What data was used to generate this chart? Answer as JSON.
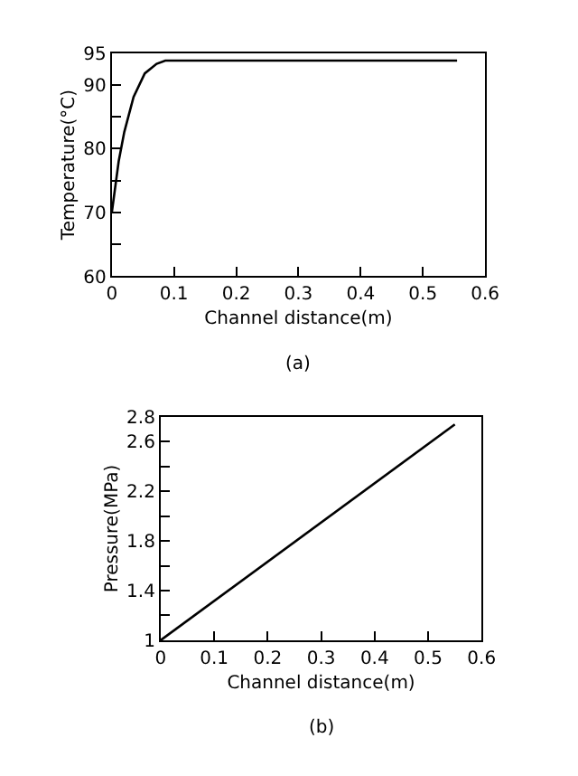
{
  "chart_data": [
    {
      "type": "line",
      "xlabel": "Channel distance(m)",
      "ylabel": "Temperature(°C)",
      "annotations": [
        "(a)"
      ],
      "x": [
        0,
        0.011,
        0.02,
        0.035,
        0.053,
        0.072,
        0.086,
        0.555
      ],
      "series": [
        {
          "color": "#000000",
          "values": [
            70,
            78,
            82.6,
            88.1,
            91.8,
            93.3,
            93.8,
            93.8
          ]
        }
      ],
      "xlim": [
        0,
        0.6
      ],
      "ylim": [
        60,
        95
      ],
      "xticks": [
        0,
        0.1,
        0.2,
        0.3,
        0.4,
        0.5,
        0.6
      ],
      "yticks": [
        60,
        {
          "value": 65,
          "label": null
        },
        70,
        {
          "value": 75,
          "label": null
        },
        80,
        {
          "value": 85,
          "label": null
        },
        90,
        95
      ],
      "grid": false,
      "marker": "none",
      "line_style": "solid"
    },
    {
      "type": "line",
      "xlabel": "Channel distance(m)",
      "ylabel": "Pressure(MPa)",
      "annotations": [
        "(b)"
      ],
      "x": [
        0,
        0.55
      ],
      "series": [
        {
          "color": "#000000",
          "values": [
            1,
            2.74
          ]
        }
      ],
      "xlim": [
        0,
        0.6
      ],
      "ylim": [
        1,
        2.8
      ],
      "xticks": [
        0,
        0.1,
        0.2,
        0.3,
        0.4,
        0.5,
        0.6
      ],
      "yticks": [
        1,
        {
          "value": 1.2,
          "label": null
        },
        1.4,
        {
          "value": 1.6,
          "label": null
        },
        1.8,
        {
          "value": 2.0,
          "label": null
        },
        2.2,
        {
          "value": 2.4,
          "label": null
        },
        2.6,
        2.8
      ],
      "grid": false,
      "marker": "none",
      "line_style": "solid"
    }
  ]
}
